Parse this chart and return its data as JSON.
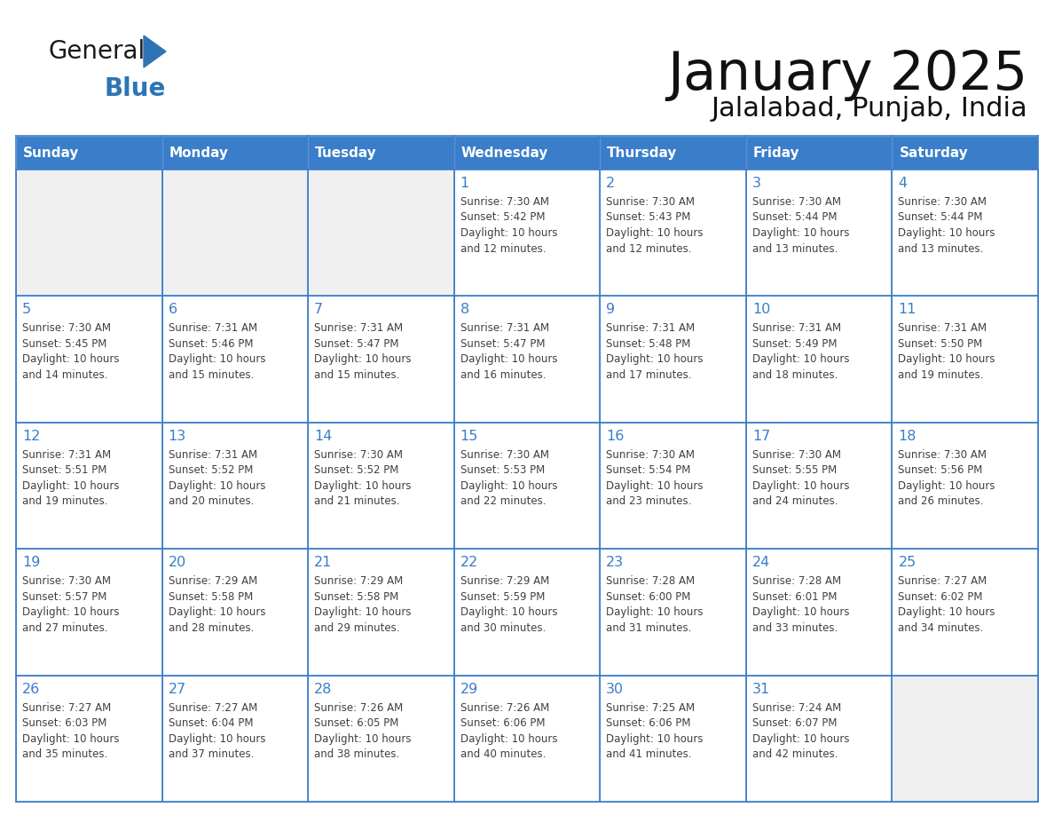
{
  "title": "January 2025",
  "subtitle": "Jalalabad, Punjab, India",
  "header_bg": "#3A7DC9",
  "header_text_color": "#FFFFFF",
  "day_names": [
    "Sunday",
    "Monday",
    "Tuesday",
    "Wednesday",
    "Thursday",
    "Friday",
    "Saturday"
  ],
  "weeks": [
    [
      {
        "day": "",
        "text": ""
      },
      {
        "day": "",
        "text": ""
      },
      {
        "day": "",
        "text": ""
      },
      {
        "day": "1",
        "text": "Sunrise: 7:30 AM\nSunset: 5:42 PM\nDaylight: 10 hours\nand 12 minutes."
      },
      {
        "day": "2",
        "text": "Sunrise: 7:30 AM\nSunset: 5:43 PM\nDaylight: 10 hours\nand 12 minutes."
      },
      {
        "day": "3",
        "text": "Sunrise: 7:30 AM\nSunset: 5:44 PM\nDaylight: 10 hours\nand 13 minutes."
      },
      {
        "day": "4",
        "text": "Sunrise: 7:30 AM\nSunset: 5:44 PM\nDaylight: 10 hours\nand 13 minutes."
      }
    ],
    [
      {
        "day": "5",
        "text": "Sunrise: 7:30 AM\nSunset: 5:45 PM\nDaylight: 10 hours\nand 14 minutes."
      },
      {
        "day": "6",
        "text": "Sunrise: 7:31 AM\nSunset: 5:46 PM\nDaylight: 10 hours\nand 15 minutes."
      },
      {
        "day": "7",
        "text": "Sunrise: 7:31 AM\nSunset: 5:47 PM\nDaylight: 10 hours\nand 15 minutes."
      },
      {
        "day": "8",
        "text": "Sunrise: 7:31 AM\nSunset: 5:47 PM\nDaylight: 10 hours\nand 16 minutes."
      },
      {
        "day": "9",
        "text": "Sunrise: 7:31 AM\nSunset: 5:48 PM\nDaylight: 10 hours\nand 17 minutes."
      },
      {
        "day": "10",
        "text": "Sunrise: 7:31 AM\nSunset: 5:49 PM\nDaylight: 10 hours\nand 18 minutes."
      },
      {
        "day": "11",
        "text": "Sunrise: 7:31 AM\nSunset: 5:50 PM\nDaylight: 10 hours\nand 19 minutes."
      }
    ],
    [
      {
        "day": "12",
        "text": "Sunrise: 7:31 AM\nSunset: 5:51 PM\nDaylight: 10 hours\nand 19 minutes."
      },
      {
        "day": "13",
        "text": "Sunrise: 7:31 AM\nSunset: 5:52 PM\nDaylight: 10 hours\nand 20 minutes."
      },
      {
        "day": "14",
        "text": "Sunrise: 7:30 AM\nSunset: 5:52 PM\nDaylight: 10 hours\nand 21 minutes."
      },
      {
        "day": "15",
        "text": "Sunrise: 7:30 AM\nSunset: 5:53 PM\nDaylight: 10 hours\nand 22 minutes."
      },
      {
        "day": "16",
        "text": "Sunrise: 7:30 AM\nSunset: 5:54 PM\nDaylight: 10 hours\nand 23 minutes."
      },
      {
        "day": "17",
        "text": "Sunrise: 7:30 AM\nSunset: 5:55 PM\nDaylight: 10 hours\nand 24 minutes."
      },
      {
        "day": "18",
        "text": "Sunrise: 7:30 AM\nSunset: 5:56 PM\nDaylight: 10 hours\nand 26 minutes."
      }
    ],
    [
      {
        "day": "19",
        "text": "Sunrise: 7:30 AM\nSunset: 5:57 PM\nDaylight: 10 hours\nand 27 minutes."
      },
      {
        "day": "20",
        "text": "Sunrise: 7:29 AM\nSunset: 5:58 PM\nDaylight: 10 hours\nand 28 minutes."
      },
      {
        "day": "21",
        "text": "Sunrise: 7:29 AM\nSunset: 5:58 PM\nDaylight: 10 hours\nand 29 minutes."
      },
      {
        "day": "22",
        "text": "Sunrise: 7:29 AM\nSunset: 5:59 PM\nDaylight: 10 hours\nand 30 minutes."
      },
      {
        "day": "23",
        "text": "Sunrise: 7:28 AM\nSunset: 6:00 PM\nDaylight: 10 hours\nand 31 minutes."
      },
      {
        "day": "24",
        "text": "Sunrise: 7:28 AM\nSunset: 6:01 PM\nDaylight: 10 hours\nand 33 minutes."
      },
      {
        "day": "25",
        "text": "Sunrise: 7:27 AM\nSunset: 6:02 PM\nDaylight: 10 hours\nand 34 minutes."
      }
    ],
    [
      {
        "day": "26",
        "text": "Sunrise: 7:27 AM\nSunset: 6:03 PM\nDaylight: 10 hours\nand 35 minutes."
      },
      {
        "day": "27",
        "text": "Sunrise: 7:27 AM\nSunset: 6:04 PM\nDaylight: 10 hours\nand 37 minutes."
      },
      {
        "day": "28",
        "text": "Sunrise: 7:26 AM\nSunset: 6:05 PM\nDaylight: 10 hours\nand 38 minutes."
      },
      {
        "day": "29",
        "text": "Sunrise: 7:26 AM\nSunset: 6:06 PM\nDaylight: 10 hours\nand 40 minutes."
      },
      {
        "day": "30",
        "text": "Sunrise: 7:25 AM\nSunset: 6:06 PM\nDaylight: 10 hours\nand 41 minutes."
      },
      {
        "day": "31",
        "text": "Sunrise: 7:24 AM\nSunset: 6:07 PM\nDaylight: 10 hours\nand 42 minutes."
      },
      {
        "day": "",
        "text": ""
      }
    ]
  ],
  "border_color": "#3A7DC9",
  "day_num_color": "#3A7DC9",
  "text_color": "#404040",
  "cell_line_color": "#AAAAAA",
  "logo_general_color": "#1A1A1A",
  "logo_blue_color": "#2E74B5",
  "logo_triangle_color": "#2E74B5",
  "bg_color": "#FFFFFF",
  "cell_empty_bg": "#F0F0F0",
  "cell_filled_bg": "#FFFFFF"
}
